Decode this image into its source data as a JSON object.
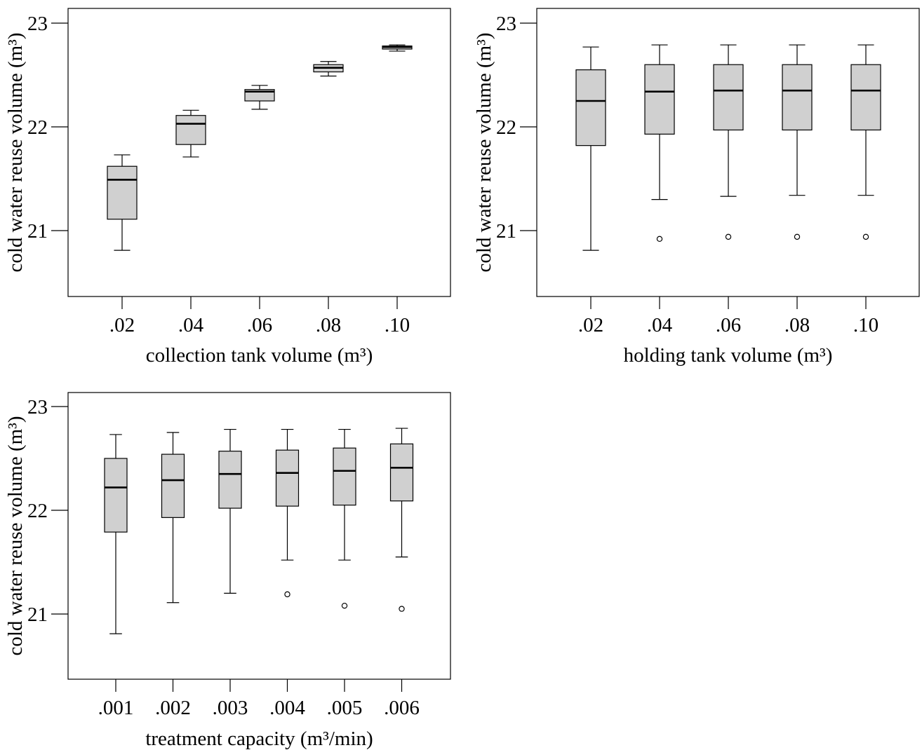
{
  "chart_data": [
    {
      "type": "box",
      "xlabel": "collection tank volume (m³)",
      "ylabel": "cold water reuse volume (m³)",
      "yticks": [
        "21",
        "22",
        "23"
      ],
      "ylim": [
        20.4,
        23.15
      ],
      "categories": [
        ".02",
        ".04",
        ".06",
        ".08",
        ".10"
      ],
      "boxes": [
        {
          "min": 20.81,
          "q1": 21.11,
          "median": 21.49,
          "q3": 21.62,
          "max": 21.73,
          "outliers": []
        },
        {
          "min": 21.71,
          "q1": 21.83,
          "median": 22.03,
          "q3": 22.11,
          "max": 22.16,
          "outliers": []
        },
        {
          "min": 22.17,
          "q1": 22.25,
          "median": 22.34,
          "q3": 22.36,
          "max": 22.4,
          "outliers": []
        },
        {
          "min": 22.49,
          "q1": 22.53,
          "median": 22.57,
          "q3": 22.6,
          "max": 22.63,
          "outliers": []
        },
        {
          "min": 22.73,
          "q1": 22.75,
          "median": 22.77,
          "q3": 22.78,
          "max": 22.79,
          "outliers": []
        }
      ]
    },
    {
      "type": "box",
      "xlabel": "holding tank volume (m³)",
      "ylabel": "cold water reuse volume (m³)",
      "yticks": [
        "21",
        "22",
        "23"
      ],
      "ylim": [
        20.4,
        23.15
      ],
      "categories": [
        ".02",
        ".04",
        ".06",
        ".08",
        ".10"
      ],
      "boxes": [
        {
          "min": 20.81,
          "q1": 21.82,
          "median": 22.25,
          "q3": 22.55,
          "max": 22.77,
          "outliers": []
        },
        {
          "min": 21.3,
          "q1": 21.93,
          "median": 22.34,
          "q3": 22.6,
          "max": 22.79,
          "outliers": [
            20.92
          ]
        },
        {
          "min": 21.33,
          "q1": 21.97,
          "median": 22.35,
          "q3": 22.6,
          "max": 22.79,
          "outliers": [
            20.94
          ]
        },
        {
          "min": 21.34,
          "q1": 21.97,
          "median": 22.35,
          "q3": 22.6,
          "max": 22.79,
          "outliers": [
            20.94
          ]
        },
        {
          "min": 21.34,
          "q1": 21.97,
          "median": 22.35,
          "q3": 22.6,
          "max": 22.79,
          "outliers": [
            20.94
          ]
        }
      ]
    },
    {
      "type": "box",
      "xlabel": "treatment capacity (m³/min)",
      "ylabel": "cold water reuse volume (m³)",
      "yticks": [
        "21",
        "22",
        "23"
      ],
      "ylim": [
        20.4,
        23.15
      ],
      "categories": [
        ".001",
        ".002",
        ".003",
        ".004",
        ".005",
        ".006"
      ],
      "boxes": [
        {
          "min": 20.81,
          "q1": 21.79,
          "median": 22.22,
          "q3": 22.5,
          "max": 22.73,
          "outliers": []
        },
        {
          "min": 21.11,
          "q1": 21.93,
          "median": 22.29,
          "q3": 22.54,
          "max": 22.75,
          "outliers": []
        },
        {
          "min": 21.2,
          "q1": 22.02,
          "median": 22.35,
          "q3": 22.57,
          "max": 22.78,
          "outliers": []
        },
        {
          "min": 21.52,
          "q1": 22.04,
          "median": 22.36,
          "q3": 22.58,
          "max": 22.78,
          "outliers": [
            21.19
          ]
        },
        {
          "min": 21.52,
          "q1": 22.05,
          "median": 22.38,
          "q3": 22.6,
          "max": 22.78,
          "outliers": [
            21.08
          ]
        },
        {
          "min": 21.55,
          "q1": 22.09,
          "median": 22.41,
          "q3": 22.64,
          "max": 22.79,
          "outliers": [
            21.05
          ]
        }
      ]
    }
  ]
}
